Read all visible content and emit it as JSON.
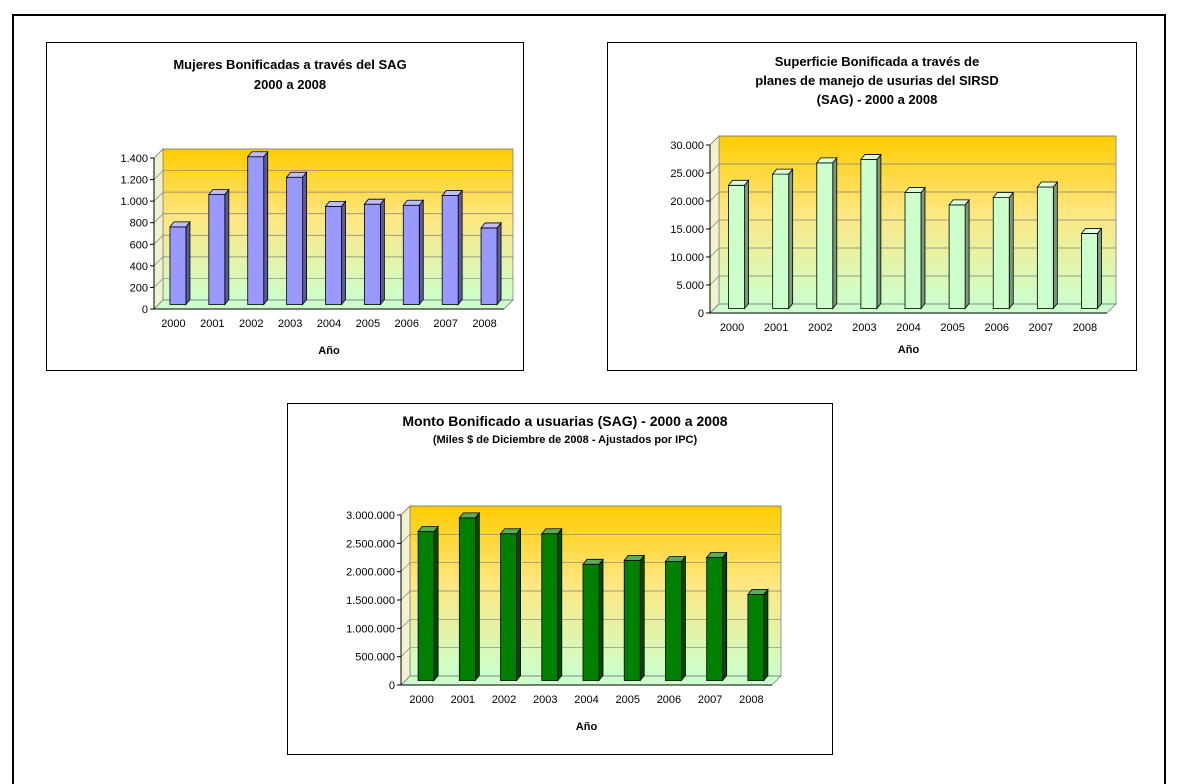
{
  "chart_data": [
    {
      "type": "bar",
      "title": [
        "Mujeres Bonificadas a través del SAG",
        "2000 a 2008"
      ],
      "xlabel": "Año",
      "ylabel": "",
      "categories": [
        "2000",
        "2001",
        "2002",
        "2003",
        "2004",
        "2005",
        "2006",
        "2007",
        "2008"
      ],
      "values": [
        720,
        1020,
        1370,
        1180,
        910,
        930,
        920,
        1010,
        710
      ],
      "ylim": [
        0,
        1400
      ],
      "yticks": [
        0,
        200,
        400,
        600,
        800,
        1000,
        1200,
        1400
      ],
      "ytick_labels": [
        "0",
        "200",
        "400",
        "600",
        "800",
        "1.000",
        "1.200",
        "1.400"
      ],
      "bar_color": "#9999ff",
      "grid": true
    },
    {
      "type": "bar",
      "title": [
        "Superficie Bonificada a través de",
        "planes de manejo de usurias del SIRSD",
        "(SAG) - 2000 a 2008"
      ],
      "xlabel": "Año",
      "ylabel": "",
      "categories": [
        "2000",
        "2001",
        "2002",
        "2003",
        "2004",
        "2005",
        "2006",
        "2007",
        "2008"
      ],
      "values": [
        22000,
        24000,
        26000,
        26600,
        20700,
        18500,
        19800,
        21700,
        13400
      ],
      "ylim": [
        0,
        30000
      ],
      "yticks": [
        0,
        5000,
        10000,
        15000,
        20000,
        25000,
        30000
      ],
      "ytick_labels": [
        "0",
        "5.000",
        "10.000",
        "15.000",
        "20.000",
        "25.000",
        "30.000"
      ],
      "bar_color": "#ccffcc",
      "grid": true
    },
    {
      "type": "bar",
      "title": [
        "Monto Bonificado a usuarias (SAG) - 2000 a 2008"
      ],
      "subtitle": "(Miles $ de Diciembre de 2008 - Ajustados por IPC)",
      "xlabel": "Año",
      "ylabel": "",
      "categories": [
        "2000",
        "2001",
        "2002",
        "2003",
        "2004",
        "2005",
        "2006",
        "2007",
        "2008"
      ],
      "values": [
        2630000,
        2870000,
        2590000,
        2590000,
        2050000,
        2120000,
        2100000,
        2170000,
        1520000
      ],
      "ylim": [
        0,
        3000000
      ],
      "yticks": [
        0,
        500000,
        1000000,
        1500000,
        2000000,
        2500000,
        3000000
      ],
      "ytick_labels": [
        "0",
        "500.000",
        "1.000.000",
        "1.500.000",
        "2.000.000",
        "2.500.000",
        "3.000.000"
      ],
      "bar_color": "#008000",
      "grid": true
    }
  ]
}
